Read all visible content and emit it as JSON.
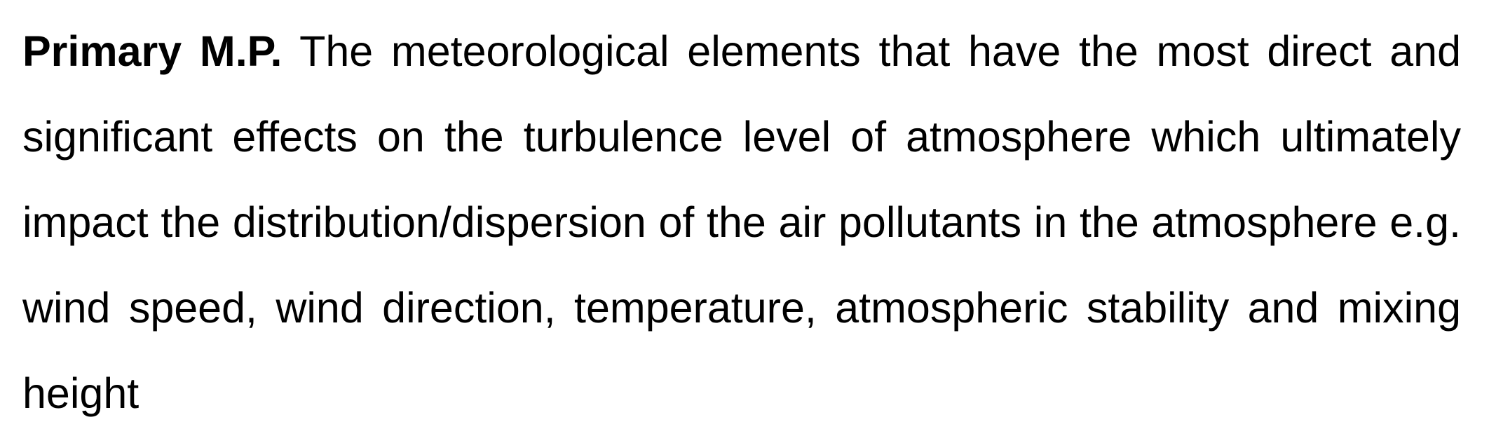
{
  "definition": {
    "term": "Primary M.P.",
    "text": "The meteorological elements that have the most direct and significant effects on the turbulence level of atmosphere which ultimately impact the distribution/dispersion of the air pollutants in the atmosphere e.g.  wind speed, wind direction, temperature, atmospheric stability and mixing height"
  }
}
